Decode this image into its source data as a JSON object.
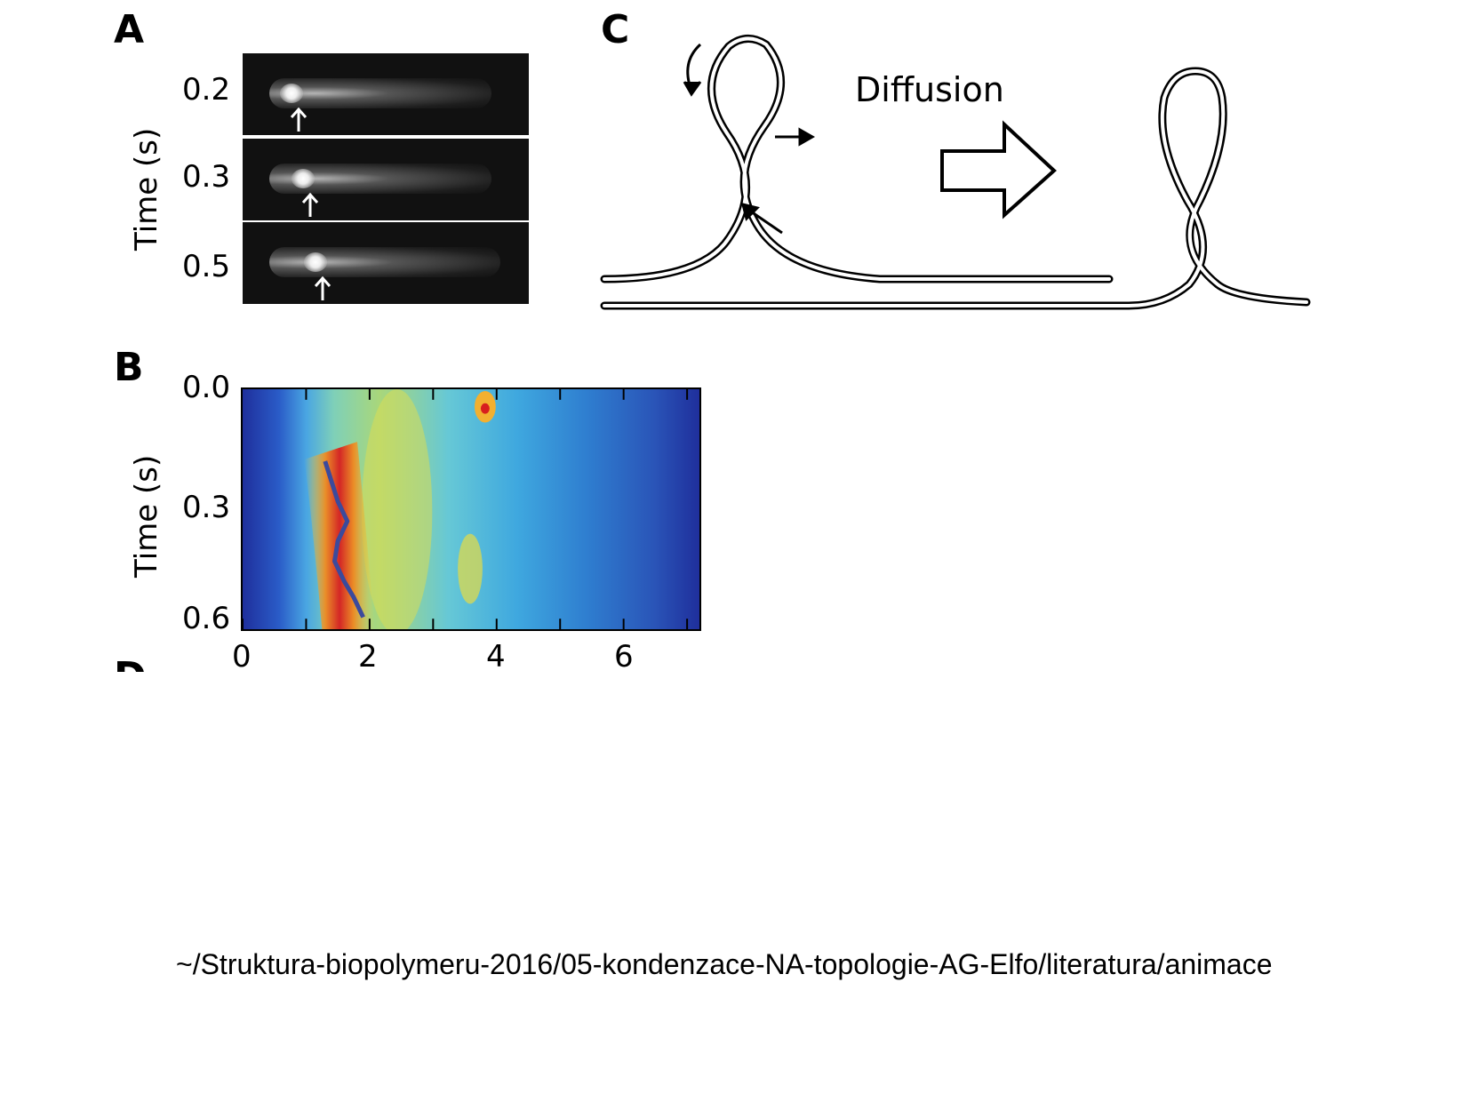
{
  "panels": {
    "a": {
      "letter": "A",
      "ylabel": "Time (s)",
      "frames": [
        {
          "time": "0.2",
          "spot_position": 0.17
        },
        {
          "time": "0.3",
          "spot_position": 0.21
        },
        {
          "time": "0.5",
          "spot_position": 0.25
        }
      ]
    },
    "b": {
      "letter": "B"
    },
    "c": {
      "letter": "C",
      "diffusion_label": "Diffusion"
    },
    "d": {
      "letter": "D"
    }
  },
  "chart_data": {
    "type": "heatmap",
    "ylabel": "Time (s)",
    "xlabel": "",
    "yticks": [
      "0.0",
      "0.3",
      "0.6"
    ],
    "xticks": [
      "0",
      "2",
      "4",
      "6"
    ],
    "xlim": [
      0,
      7.2
    ],
    "ylim": [
      0.0,
      0.6
    ],
    "track": [
      {
        "x": 1.3,
        "y": 0.18
      },
      {
        "x": 1.4,
        "y": 0.23
      },
      {
        "x": 1.5,
        "y": 0.28
      },
      {
        "x": 1.65,
        "y": 0.33
      },
      {
        "x": 1.5,
        "y": 0.38
      },
      {
        "x": 1.45,
        "y": 0.43
      },
      {
        "x": 1.6,
        "y": 0.48
      },
      {
        "x": 1.75,
        "y": 0.52
      },
      {
        "x": 1.9,
        "y": 0.57
      }
    ],
    "colors": {
      "low": "#1f2f9c",
      "mid": "#5fd0e8",
      "high": "#d81e1e",
      "track": "#3b4a9c"
    }
  },
  "footer": {
    "path": "~/Struktura-biopolymeru-2016/05-kondenzace-NA-topologie-AG-Elfo/literatura/animace"
  }
}
